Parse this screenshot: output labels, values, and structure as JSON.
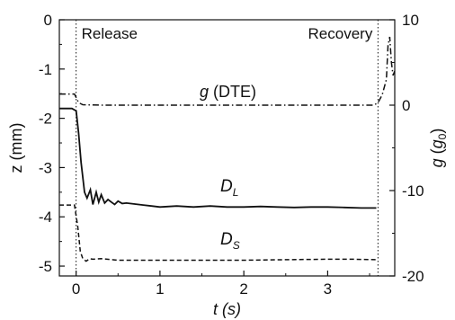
{
  "chart_data": {
    "type": "line",
    "xlabel": "t (s)",
    "ylabel_left": "z (mm)",
    "ylabel_right": "g (g0)",
    "ylabel_right_main": "g",
    "ylabel_right_sub": "g",
    "ylabel_right_sub2": "0",
    "xlim": [
      -0.2,
      3.8
    ],
    "ylim_left": [
      -5.2,
      0
    ],
    "ylim_right": [
      -20,
      10
    ],
    "x_ticks": [
      0,
      1,
      2,
      3
    ],
    "x_tick_labels": [
      "0",
      "1",
      "2",
      "3"
    ],
    "y_left_ticks": [
      -5,
      -4,
      -3,
      -2,
      -1,
      0
    ],
    "y_left_tick_labels": [
      "-5",
      "-4",
      "-3",
      "-2",
      "-1",
      "0"
    ],
    "y_right_ticks": [
      -20,
      -10,
      0,
      10
    ],
    "y_right_tick_labels": [
      "-20",
      "-10",
      "0",
      "10"
    ],
    "grid": false,
    "vertical_markers": [
      {
        "x": 0.0,
        "label": "Release"
      },
      {
        "x": 3.6,
        "label": "Recovery"
      }
    ],
    "series": [
      {
        "label_main": "D",
        "label_sub": "L",
        "axis": "left",
        "style": "solid",
        "x": [
          -0.2,
          -0.05,
          0.0,
          0.03,
          0.06,
          0.1,
          0.13,
          0.17,
          0.2,
          0.24,
          0.27,
          0.3,
          0.34,
          0.38,
          0.42,
          0.46,
          0.5,
          0.55,
          0.6,
          0.7,
          0.8,
          0.9,
          1.0,
          1.2,
          1.4,
          1.6,
          1.8,
          2.0,
          2.2,
          2.4,
          2.6,
          2.8,
          3.0,
          3.2,
          3.4,
          3.58
        ],
        "y": [
          -1.8,
          -1.8,
          -1.85,
          -2.3,
          -2.9,
          -3.5,
          -3.62,
          -3.45,
          -3.75,
          -3.5,
          -3.7,
          -3.55,
          -3.72,
          -3.65,
          -3.7,
          -3.75,
          -3.68,
          -3.73,
          -3.72,
          -3.74,
          -3.76,
          -3.78,
          -3.8,
          -3.78,
          -3.8,
          -3.78,
          -3.8,
          -3.8,
          -3.79,
          -3.8,
          -3.81,
          -3.8,
          -3.8,
          -3.81,
          -3.82,
          -3.82
        ]
      },
      {
        "label_main": "D",
        "label_sub": "S",
        "axis": "left",
        "style": "dashed",
        "x": [
          -0.2,
          -0.02,
          0.02,
          0.05,
          0.08,
          0.12,
          0.16,
          0.2,
          0.3,
          0.5,
          0.8,
          1.0,
          1.5,
          2.0,
          2.5,
          3.0,
          3.3,
          3.58
        ],
        "y": [
          -3.76,
          -3.76,
          -4.2,
          -4.7,
          -4.85,
          -4.9,
          -4.85,
          -4.86,
          -4.85,
          -4.88,
          -4.88,
          -4.88,
          -4.88,
          -4.88,
          -4.87,
          -4.86,
          -4.86,
          -4.87
        ]
      },
      {
        "label_main": "g",
        "label_rest": " (DTE)",
        "axis": "right",
        "style": "dashdot",
        "x": [
          -0.2,
          -0.02,
          0.03,
          0.08,
          0.3,
          1.0,
          2.0,
          3.0,
          3.55,
          3.6,
          3.65,
          3.7,
          3.72,
          3.74,
          3.76,
          3.78,
          3.8
        ],
        "y": [
          1.3,
          1.3,
          0.3,
          0.05,
          0.0,
          0.0,
          0.0,
          0.0,
          0.0,
          0.3,
          1.2,
          3.0,
          7.0,
          8.0,
          5.0,
          3.5,
          4.0
        ]
      }
    ]
  }
}
